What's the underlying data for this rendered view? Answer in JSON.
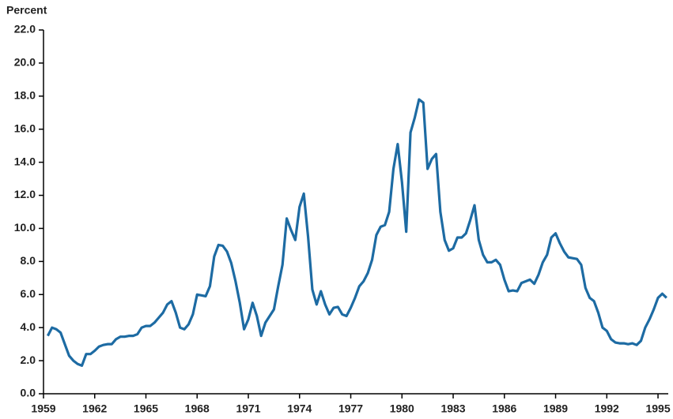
{
  "chart_data": {
    "type": "line",
    "y_label": "Percent",
    "x": [
      1959.25,
      1959.5,
      1959.75,
      1960,
      1960.25,
      1960.5,
      1960.75,
      1961,
      1961.25,
      1961.5,
      1961.75,
      1962,
      1962.25,
      1962.5,
      1962.75,
      1963,
      1963.25,
      1963.5,
      1963.75,
      1964,
      1964.25,
      1964.5,
      1964.75,
      1965,
      1965.25,
      1965.5,
      1965.75,
      1966,
      1966.25,
      1966.5,
      1966.75,
      1967,
      1967.25,
      1967.5,
      1967.75,
      1968,
      1968.25,
      1968.5,
      1968.75,
      1969,
      1969.25,
      1969.5,
      1969.75,
      1970,
      1970.25,
      1970.5,
      1970.75,
      1971,
      1971.25,
      1971.5,
      1971.75,
      1972,
      1972.25,
      1972.5,
      1972.75,
      1973,
      1973.25,
      1973.5,
      1973.75,
      1974,
      1974.25,
      1974.5,
      1974.75,
      1975,
      1975.25,
      1975.5,
      1975.75,
      1976,
      1976.25,
      1976.5,
      1976.75,
      1977,
      1977.25,
      1977.5,
      1977.75,
      1978,
      1978.25,
      1978.5,
      1978.75,
      1979,
      1979.25,
      1979.5,
      1979.75,
      1980,
      1980.25,
      1980.5,
      1980.75,
      1981,
      1981.25,
      1981.5,
      1981.75,
      1982,
      1982.25,
      1982.5,
      1982.75,
      1983,
      1983.25,
      1983.5,
      1983.75,
      1984,
      1984.25,
      1984.5,
      1984.75,
      1985,
      1985.25,
      1985.5,
      1985.75,
      1986,
      1986.25,
      1986.5,
      1986.75,
      1987,
      1987.25,
      1987.5,
      1987.75,
      1988,
      1988.25,
      1988.5,
      1988.75,
      1989,
      1989.25,
      1989.5,
      1989.75,
      1990,
      1990.25,
      1990.5,
      1990.75,
      1991,
      1991.25,
      1991.5,
      1991.75,
      1992,
      1992.25,
      1992.5,
      1992.75,
      1993,
      1993.25,
      1993.5,
      1993.75,
      1994,
      1994.25,
      1994.5,
      1994.75,
      1995,
      1995.25,
      1995.5
    ],
    "series": [
      {
        "color": "#1d6ba3",
        "values": [
          3.5,
          4.0,
          3.9,
          3.7,
          3.0,
          2.3,
          2.0,
          1.8,
          1.7,
          2.4,
          2.4,
          2.6,
          2.85,
          2.95,
          3.0,
          3.0,
          3.3,
          3.45,
          3.45,
          3.5,
          3.5,
          3.6,
          4.0,
          4.1,
          4.1,
          4.3,
          4.6,
          4.9,
          5.4,
          5.6,
          4.9,
          4.0,
          3.9,
          4.2,
          4.8,
          6.0,
          5.95,
          5.9,
          6.5,
          8.3,
          9.0,
          8.95,
          8.6,
          7.9,
          6.8,
          5.5,
          3.9,
          4.5,
          5.5,
          4.7,
          3.5,
          4.3,
          4.7,
          5.1,
          6.5,
          7.8,
          10.6,
          9.9,
          9.3,
          11.3,
          12.1,
          9.5,
          6.3,
          5.4,
          6.2,
          5.4,
          4.8,
          5.2,
          5.25,
          4.8,
          4.7,
          5.2,
          5.8,
          6.5,
          6.8,
          7.3,
          8.1,
          9.6,
          10.1,
          10.2,
          11.0,
          13.6,
          15.1,
          12.8,
          9.8,
          15.8,
          16.7,
          17.8,
          17.6,
          13.6,
          14.2,
          14.5,
          11.0,
          9.3,
          8.65,
          8.8,
          9.45,
          9.45,
          9.7,
          10.5,
          11.4,
          9.3,
          8.4,
          7.95,
          7.95,
          8.1,
          7.8,
          6.9,
          6.2,
          6.25,
          6.2,
          6.7,
          6.8,
          6.9,
          6.65,
          7.2,
          7.95,
          8.4,
          9.45,
          9.7,
          9.1,
          8.6,
          8.25,
          8.2,
          8.15,
          7.8,
          6.4,
          5.8,
          5.6,
          4.9,
          4.0,
          3.8,
          3.3,
          3.1,
          3.05,
          3.05,
          3.0,
          3.05,
          2.95,
          3.2,
          4.0,
          4.5,
          5.1,
          5.8,
          6.05,
          5.8
        ]
      }
    ],
    "xlim": [
      1959,
      1995.6
    ],
    "xticks": [
      1959,
      1962,
      1965,
      1968,
      1971,
      1974,
      1977,
      1980,
      1983,
      1986,
      1989,
      1992,
      1995
    ],
    "ylim": [
      0,
      22
    ],
    "yticks": [
      {
        "value": 0,
        "label": "0.0"
      },
      {
        "value": 2,
        "label": "2.0"
      },
      {
        "value": 4,
        "label": "4.0"
      },
      {
        "value": 6,
        "label": "6.0"
      },
      {
        "value": 8,
        "label": "8.0"
      },
      {
        "value": 10,
        "label": "10.0"
      },
      {
        "value": 12,
        "label": "12.0"
      },
      {
        "value": 14,
        "label": "14.0"
      },
      {
        "value": 16,
        "label": "16.0"
      },
      {
        "value": 18,
        "label": "18.0"
      },
      {
        "value": 20,
        "label": "20.0"
      },
      {
        "value": 22,
        "label": "22.0"
      }
    ],
    "grid": false
  }
}
